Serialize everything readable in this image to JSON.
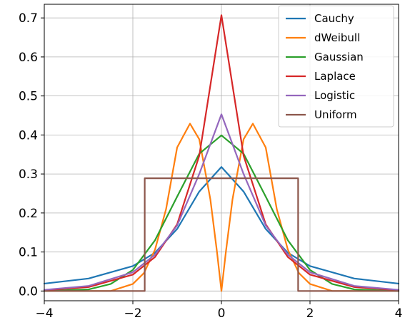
{
  "chart_data": {
    "type": "line",
    "title": "",
    "xlabel": "",
    "ylabel": "",
    "xlim": [
      -4,
      4
    ],
    "ylim": [
      -0.025,
      0.735
    ],
    "xticks": [
      -4,
      -2,
      0,
      2,
      4
    ],
    "xtick_labels": [
      "−4",
      "−2",
      "0",
      "2",
      "4"
    ],
    "yticks": [
      0.0,
      0.1,
      0.2,
      0.3,
      0.4,
      0.5,
      0.6,
      0.7
    ],
    "ytick_labels": [
      "0.0",
      "0.1",
      "0.2",
      "0.3",
      "0.4",
      "0.5",
      "0.6",
      "0.7"
    ],
    "grid": true,
    "legend_position": "top-right",
    "series": [
      {
        "name": "Cauchy",
        "color": "#1f77b4",
        "x": [
          -4,
          -3,
          -2,
          -1.5,
          -1,
          -0.5,
          0,
          0.5,
          1,
          1.5,
          2,
          3,
          4
        ],
        "y": [
          0.019,
          0.032,
          0.064,
          0.098,
          0.159,
          0.255,
          0.318,
          0.255,
          0.159,
          0.098,
          0.064,
          0.032,
          0.019
        ]
      },
      {
        "name": "dWeibull",
        "color": "#ff7f0e",
        "x": [
          -4,
          -3,
          -2.5,
          -2,
          -1.75,
          -1.5,
          -1.25,
          -1,
          -0.71,
          -0.5,
          -0.25,
          -0.1,
          0,
          0.1,
          0.25,
          0.5,
          0.71,
          1,
          1.25,
          1.5,
          1.75,
          2,
          2.5,
          3,
          4
        ],
        "y": [
          0.0,
          0.0,
          0.0,
          0.018,
          0.046,
          0.106,
          0.21,
          0.368,
          0.429,
          0.389,
          0.235,
          0.1,
          0.0,
          0.1,
          0.235,
          0.389,
          0.429,
          0.368,
          0.21,
          0.106,
          0.046,
          0.018,
          0.0,
          0.0,
          0.0
        ]
      },
      {
        "name": "Gaussian",
        "color": "#2ca02c",
        "x": [
          -4,
          -3,
          -2.5,
          -2,
          -1.5,
          -1,
          -0.5,
          0,
          0.5,
          1,
          1.5,
          2,
          2.5,
          3,
          4
        ],
        "y": [
          0.0,
          0.004,
          0.018,
          0.054,
          0.13,
          0.242,
          0.352,
          0.399,
          0.352,
          0.242,
          0.13,
          0.054,
          0.018,
          0.004,
          0.0
        ]
      },
      {
        "name": "Laplace",
        "color": "#d62728",
        "x": [
          -4,
          -3,
          -2,
          -1.5,
          -1,
          -0.5,
          0,
          0.5,
          1,
          1.5,
          2,
          3,
          4
        ],
        "y": [
          0.002,
          0.01,
          0.042,
          0.087,
          0.171,
          0.347,
          0.707,
          0.347,
          0.171,
          0.087,
          0.042,
          0.01,
          0.002
        ]
      },
      {
        "name": "Logistic",
        "color": "#9467bd",
        "x": [
          -4,
          -3,
          -2,
          -1.5,
          -1,
          -0.5,
          0,
          0.5,
          1,
          1.5,
          2,
          3,
          4
        ],
        "y": [
          0.003,
          0.013,
          0.048,
          0.093,
          0.168,
          0.3,
          0.453,
          0.3,
          0.168,
          0.093,
          0.048,
          0.013,
          0.003
        ]
      },
      {
        "name": "Uniform",
        "color": "#8c564b",
        "x": [
          -4,
          -1.732,
          -1.732,
          1.732,
          1.732,
          4
        ],
        "y": [
          0.0,
          0.0,
          0.289,
          0.289,
          0.0,
          0.0
        ]
      }
    ]
  }
}
